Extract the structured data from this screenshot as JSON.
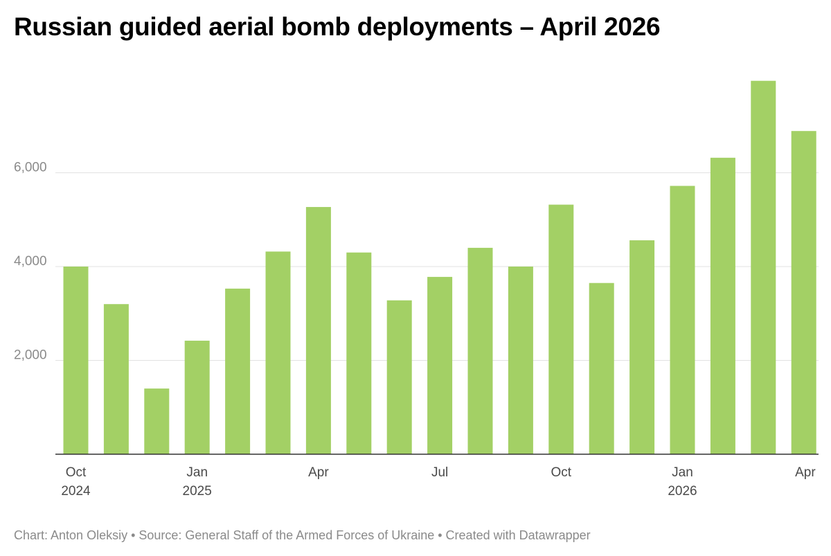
{
  "title": "Russian guided aerial bomb deployments – April 2026",
  "footer": "Chart: Anton Oleksiy • Source: General Staff of the Armed Forces of Ukraine • Created with Datawrapper",
  "colors": {
    "bar": "#a3d065",
    "grid": "#e2e2e2",
    "axis": "#333333",
    "ytick": "#8a8a8a",
    "xtick": "#4a4a4a"
  },
  "chart_data": {
    "type": "bar",
    "categories": [
      "Oct 2024",
      "Nov 2024",
      "Dec 2024",
      "Jan 2025",
      "Feb 2025",
      "Mar 2025",
      "Apr 2025",
      "May 2025",
      "Jun 2025",
      "Jul 2025",
      "Aug 2025",
      "Sep 2025",
      "Oct 2025",
      "Nov 2025",
      "Dec 2025",
      "Jan 2026",
      "Feb 2026",
      "Mar 2026",
      "Apr 2026"
    ],
    "values": [
      4000,
      3200,
      1400,
      2420,
      3530,
      4320,
      5270,
      4300,
      3280,
      3780,
      4400,
      4000,
      5320,
      3650,
      4560,
      5720,
      6320,
      7960,
      6890
    ],
    "ylim": [
      0,
      8000
    ],
    "yticks": [
      2000,
      4000,
      6000
    ],
    "ytick_labels": [
      "2,000",
      "4,000",
      "6,000"
    ],
    "xticks": [
      {
        "index": 0,
        "line1": "Oct",
        "line2": "2024"
      },
      {
        "index": 3,
        "line1": "Jan",
        "line2": "2025"
      },
      {
        "index": 6,
        "line1": "Apr",
        "line2": ""
      },
      {
        "index": 9,
        "line1": "Jul",
        "line2": ""
      },
      {
        "index": 12,
        "line1": "Oct",
        "line2": ""
      },
      {
        "index": 15,
        "line1": "Jan",
        "line2": "2026"
      },
      {
        "index": 18,
        "line1": "Apr",
        "line2": ""
      }
    ],
    "grid": true,
    "legend": "none",
    "xlabel": "",
    "ylabel": ""
  }
}
